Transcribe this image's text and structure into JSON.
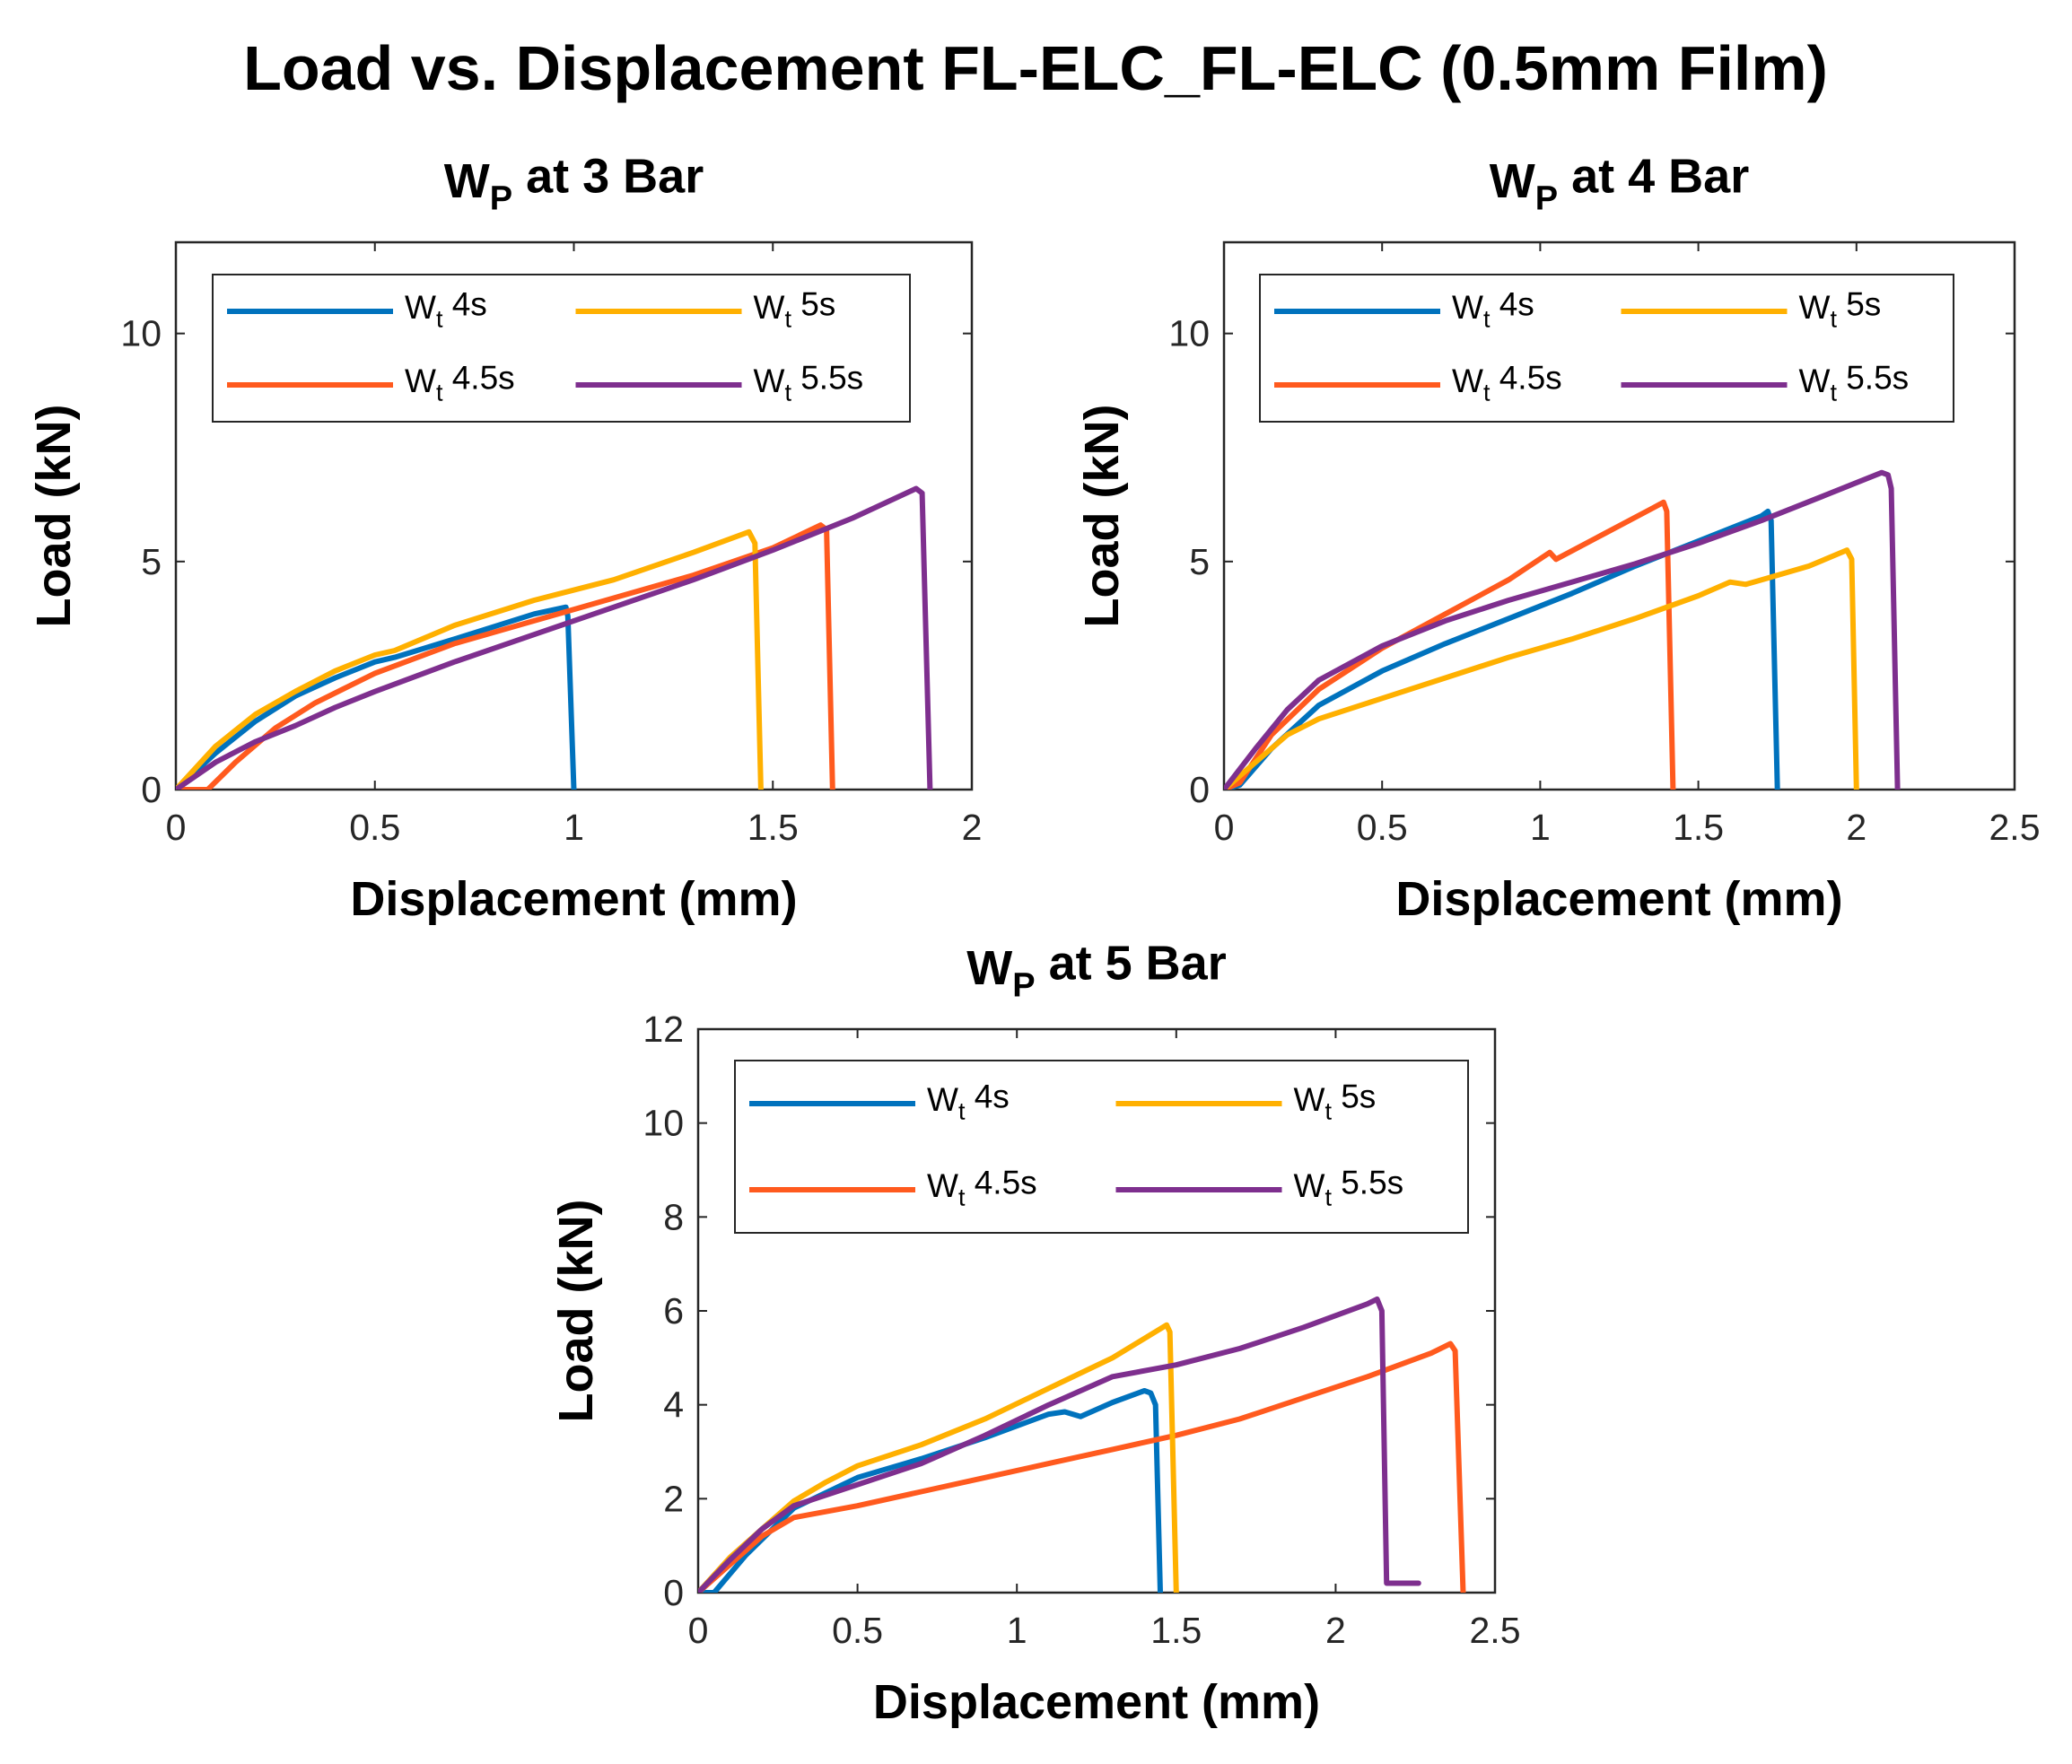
{
  "title": "Load vs. Displacement FL-ELC_FL-ELC (0.5mm Film)",
  "colors": {
    "blue": "#0072BD",
    "orange": "#FF5A1E",
    "yellow": "#FFB000",
    "purple": "#7E2F8E"
  },
  "chart_data": [
    {
      "type": "line",
      "title": "W",
      "title_sub": "P",
      "title_suffix": " at 3 Bar",
      "xlabel": "Displacement (mm)",
      "ylabel": "Load (kN)",
      "xlim": [
        0,
        2
      ],
      "ylim": [
        0,
        12
      ],
      "xticks": [
        0,
        0.5,
        1,
        1.5,
        2
      ],
      "xtick_labels": [
        "0",
        "0.5",
        "1",
        "1.5",
        "2"
      ],
      "yticks": [
        0,
        5,
        10
      ],
      "ytick_labels": [
        "0",
        "5",
        "10"
      ],
      "legend_location": "top-left",
      "series": [
        {
          "name": "W",
          "sub": "t",
          "suffix": " 4s",
          "color": "#0072BD",
          "x": [
            0,
            0.1,
            0.2,
            0.3,
            0.4,
            0.5,
            0.55,
            0.7,
            0.9,
            0.98,
            0.985,
            1.0
          ],
          "y": [
            0,
            0.8,
            1.5,
            2.05,
            2.45,
            2.8,
            2.9,
            3.3,
            3.85,
            4.0,
            3.8,
            0
          ]
        },
        {
          "name": "W",
          "sub": "t",
          "suffix": " 4.5s",
          "color": "#FF5A1E",
          "x": [
            0,
            0.08,
            0.15,
            0.25,
            0.35,
            0.5,
            0.7,
            0.9,
            1.1,
            1.3,
            1.5,
            1.62,
            1.635,
            1.65
          ],
          "y": [
            0,
            0,
            0.6,
            1.35,
            1.9,
            2.55,
            3.2,
            3.7,
            4.2,
            4.7,
            5.3,
            5.8,
            5.7,
            0
          ]
        },
        {
          "name": "W",
          "sub": "t",
          "suffix": " 5s",
          "color": "#FFB000",
          "x": [
            0,
            0.1,
            0.2,
            0.3,
            0.4,
            0.5,
            0.55,
            0.7,
            0.9,
            1.1,
            1.3,
            1.44,
            1.455,
            1.47
          ],
          "y": [
            0,
            0.95,
            1.65,
            2.15,
            2.6,
            2.95,
            3.05,
            3.6,
            4.15,
            4.6,
            5.2,
            5.65,
            5.4,
            0
          ]
        },
        {
          "name": "W",
          "sub": "t",
          "suffix": " 5.5s",
          "color": "#7E2F8E",
          "x": [
            0,
            0.1,
            0.2,
            0.3,
            0.4,
            0.5,
            0.7,
            0.9,
            1.1,
            1.3,
            1.5,
            1.7,
            1.86,
            1.875,
            1.895
          ],
          "y": [
            0,
            0.6,
            1.05,
            1.4,
            1.8,
            2.15,
            2.8,
            3.4,
            4.0,
            4.6,
            5.25,
            5.95,
            6.6,
            6.5,
            0
          ]
        }
      ]
    },
    {
      "type": "line",
      "title": "W",
      "title_sub": "P",
      "title_suffix": " at 4 Bar",
      "xlabel": "Displacement (mm)",
      "ylabel": "Load (kN)",
      "xlim": [
        0,
        2.5
      ],
      "ylim": [
        0,
        12
      ],
      "xticks": [
        0,
        0.5,
        1,
        1.5,
        2,
        2.5
      ],
      "xtick_labels": [
        "0",
        "0.5",
        "1",
        "1.5",
        "2",
        "2.5"
      ],
      "yticks": [
        0,
        5,
        10
      ],
      "ytick_labels": [
        "0",
        "5",
        "10"
      ],
      "legend_location": "top-left",
      "series": [
        {
          "name": "W",
          "sub": "t",
          "suffix": " 4s",
          "color": "#0072BD",
          "x": [
            0,
            0.05,
            0.15,
            0.3,
            0.5,
            0.7,
            0.9,
            1.1,
            1.3,
            1.5,
            1.7,
            1.72,
            1.73,
            1.75
          ],
          "y": [
            0,
            0.1,
            0.9,
            1.85,
            2.6,
            3.2,
            3.75,
            4.3,
            4.9,
            5.45,
            6.0,
            6.1,
            5.9,
            0
          ]
        },
        {
          "name": "W",
          "sub": "t",
          "suffix": " 4.5s",
          "color": "#FF5A1E",
          "x": [
            0,
            0.05,
            0.15,
            0.3,
            0.5,
            0.7,
            0.9,
            1.03,
            1.05,
            1.2,
            1.35,
            1.39,
            1.4,
            1.42
          ],
          "y": [
            0,
            0.15,
            1.2,
            2.2,
            3.1,
            3.85,
            4.6,
            5.2,
            5.05,
            5.6,
            6.15,
            6.3,
            6.1,
            0
          ]
        },
        {
          "name": "W",
          "sub": "t",
          "suffix": " 5s",
          "color": "#FFB000",
          "x": [
            0,
            0.1,
            0.2,
            0.3,
            0.5,
            0.7,
            0.9,
            1.1,
            1.3,
            1.5,
            1.6,
            1.65,
            1.7,
            1.85,
            1.97,
            1.985,
            2.0
          ],
          "y": [
            0,
            0.6,
            1.2,
            1.55,
            2.0,
            2.45,
            2.9,
            3.3,
            3.75,
            4.25,
            4.55,
            4.5,
            4.6,
            4.9,
            5.25,
            5.05,
            0
          ]
        },
        {
          "name": "W",
          "sub": "t",
          "suffix": " 5.5s",
          "color": "#7E2F8E",
          "x": [
            0,
            0.1,
            0.2,
            0.3,
            0.5,
            0.7,
            0.9,
            1.1,
            1.3,
            1.5,
            1.7,
            1.9,
            2.08,
            2.1,
            2.11,
            2.13
          ],
          "y": [
            0,
            0.9,
            1.75,
            2.4,
            3.15,
            3.7,
            4.15,
            4.55,
            4.95,
            5.4,
            5.9,
            6.45,
            6.95,
            6.9,
            6.6,
            0
          ]
        }
      ]
    },
    {
      "type": "line",
      "title": "W",
      "title_sub": "P",
      "title_suffix": " at 5 Bar",
      "xlabel": "Displacement (mm)",
      "ylabel": "Load (kN)",
      "xlim": [
        0,
        2.5
      ],
      "ylim": [
        0,
        12
      ],
      "xticks": [
        0,
        0.5,
        1,
        1.5,
        2,
        2.5
      ],
      "xtick_labels": [
        "0",
        "0.5",
        "1",
        "1.5",
        "2",
        "2.5"
      ],
      "yticks": [
        0,
        2,
        4,
        6,
        8,
        10,
        12
      ],
      "ytick_labels": [
        "0",
        "2",
        "4",
        "6",
        "8",
        "10",
        "12"
      ],
      "legend_location": "top-left",
      "series": [
        {
          "name": "W",
          "sub": "t",
          "suffix": " 4s",
          "color": "#0072BD",
          "x": [
            0,
            0.05,
            0.15,
            0.3,
            0.5,
            0.7,
            0.9,
            1.1,
            1.15,
            1.2,
            1.3,
            1.4,
            1.42,
            1.435,
            1.45
          ],
          "y": [
            0,
            0,
            0.8,
            1.8,
            2.45,
            2.85,
            3.3,
            3.8,
            3.85,
            3.75,
            4.05,
            4.3,
            4.25,
            4.0,
            0
          ]
        },
        {
          "name": "W",
          "sub": "t",
          "suffix": " 4.5s",
          "color": "#FF5A1E",
          "x": [
            0,
            0.1,
            0.2,
            0.3,
            0.5,
            0.7,
            0.9,
            1.1,
            1.3,
            1.5,
            1.7,
            1.9,
            2.1,
            2.3,
            2.36,
            2.375,
            2.4
          ],
          "y": [
            0,
            0.6,
            1.2,
            1.6,
            1.85,
            2.15,
            2.45,
            2.75,
            3.05,
            3.35,
            3.7,
            4.15,
            4.6,
            5.1,
            5.3,
            5.15,
            0
          ]
        },
        {
          "name": "W",
          "sub": "t",
          "suffix": " 5s",
          "color": "#FFB000",
          "x": [
            0,
            0.1,
            0.2,
            0.3,
            0.4,
            0.5,
            0.7,
            0.9,
            1.1,
            1.3,
            1.47,
            1.48,
            1.5
          ],
          "y": [
            0,
            0.75,
            1.35,
            1.95,
            2.35,
            2.7,
            3.15,
            3.7,
            4.35,
            5.0,
            5.7,
            5.55,
            0
          ]
        },
        {
          "name": "W",
          "sub": "t",
          "suffix": " 5.5s",
          "color": "#7E2F8E",
          "x": [
            0,
            0.1,
            0.2,
            0.3,
            0.5,
            0.7,
            0.9,
            1.1,
            1.3,
            1.5,
            1.7,
            1.9,
            2.1,
            2.13,
            2.145,
            2.16,
            2.2,
            2.26
          ],
          "y": [
            0,
            0.7,
            1.35,
            1.85,
            2.3,
            2.75,
            3.35,
            4.0,
            4.6,
            4.85,
            5.2,
            5.65,
            6.15,
            6.25,
            6.0,
            0.2,
            0.2,
            0.2
          ]
        }
      ]
    }
  ]
}
